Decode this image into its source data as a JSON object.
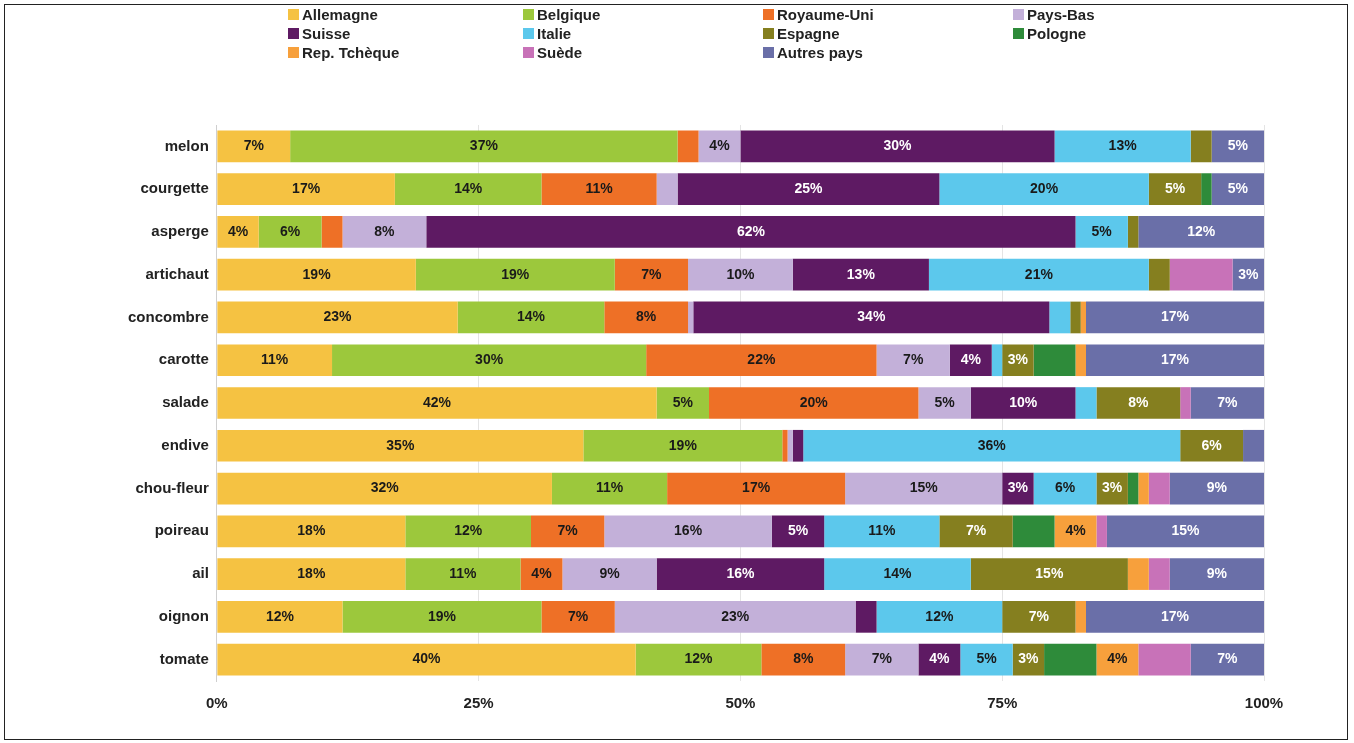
{
  "chart_data": {
    "type": "bar",
    "orientation": "horizontal",
    "stacked": true,
    "legend": "top",
    "grid": "x",
    "categories": [
      "melon",
      "courgette",
      "asperge",
      "artichaut",
      "concombre",
      "carotte",
      "salade",
      "endive",
      "chou-fleur",
      "poireau",
      "ail",
      "oignon",
      "tomate"
    ],
    "xlim": [
      0,
      100
    ],
    "xticks": [
      {
        "value": 0,
        "label": "0%"
      },
      {
        "value": 25,
        "label": "25%"
      },
      {
        "value": 50,
        "label": "50%"
      },
      {
        "value": 75,
        "label": "75%"
      },
      {
        "value": 100,
        "label": "100%"
      }
    ],
    "series": [
      {
        "name": "Allemagne",
        "color": "#f5c242",
        "values": [
          7,
          17,
          4,
          19,
          23,
          11,
          42,
          35,
          32,
          18,
          18,
          12,
          40
        ],
        "value_labels": [
          "7%",
          "17%",
          "4%",
          "19%",
          "23%",
          "11%",
          "42%",
          "35%",
          "32%",
          "18%",
          "18%",
          "12%",
          "40%"
        ]
      },
      {
        "name": "Belgique",
        "color": "#9cc83c",
        "values": [
          37,
          14,
          6,
          19,
          14,
          30,
          5,
          19,
          11,
          12,
          11,
          19,
          12
        ],
        "value_labels": [
          "37%",
          "14%",
          "6%",
          "19%",
          "14%",
          "30%",
          "5%",
          "19%",
          "11%",
          "12%",
          "11%",
          "19%",
          "12%"
        ]
      },
      {
        "name": "Royaume-Uni",
        "color": "#ee7026",
        "values": [
          2,
          11,
          2,
          7,
          8,
          22,
          20,
          0.5,
          17,
          7,
          4,
          7,
          8
        ],
        "value_labels": [
          null,
          "11%",
          null,
          "7%",
          "8%",
          "22%",
          "20%",
          null,
          "17%",
          "7%",
          "4%",
          "7%",
          "8%"
        ]
      },
      {
        "name": "Pays-Bas",
        "color": "#c3b0d9",
        "values": [
          4,
          2,
          8,
          10,
          0.5,
          7,
          5,
          0.5,
          15,
          16,
          9,
          23,
          7
        ],
        "value_labels": [
          "4%",
          null,
          "8%",
          "10%",
          null,
          "7%",
          "5%",
          null,
          "15%",
          "16%",
          "9%",
          "23%",
          "7%"
        ]
      },
      {
        "name": "Suisse",
        "color": "#5e1a63",
        "values": [
          30,
          25,
          62,
          13,
          34,
          4,
          10,
          1,
          3,
          5,
          16,
          2,
          4
        ],
        "value_labels": [
          "30%",
          "25%",
          "62%",
          "13%",
          "34%",
          "4%",
          "10%",
          null,
          "3%",
          "5%",
          "16%",
          null,
          "4%"
        ]
      },
      {
        "name": "Italie",
        "color": "#5cc8ec",
        "values": [
          13,
          20,
          5,
          21,
          2,
          1,
          2,
          36,
          6,
          11,
          14,
          12,
          5
        ],
        "value_labels": [
          "13%",
          "20%",
          "5%",
          "21%",
          null,
          null,
          null,
          "36%",
          "6%",
          "11%",
          "14%",
          "12%",
          "5%"
        ]
      },
      {
        "name": "Espagne",
        "color": "#857f1f",
        "values": [
          2,
          5,
          1,
          2,
          1,
          3,
          8,
          6,
          3,
          7,
          15,
          7,
          3
        ],
        "value_labels": [
          null,
          "5%",
          null,
          null,
          null,
          "3%",
          "8%",
          "6%",
          "3%",
          "7%",
          "15%",
          "7%",
          "3%"
        ]
      },
      {
        "name": "Pologne",
        "color": "#2e8b3a",
        "values": [
          0,
          1,
          0,
          0,
          0,
          4,
          0,
          0,
          1,
          4,
          0,
          0,
          5
        ],
        "value_labels": [
          null,
          null,
          null,
          null,
          null,
          null,
          null,
          null,
          null,
          null,
          null,
          null,
          null
        ]
      },
      {
        "name": "Rep. Tchèque",
        "color": "#f7a03c",
        "values": [
          0,
          0,
          0,
          0,
          0.5,
          1,
          0,
          0,
          1,
          4,
          2,
          1,
          4
        ],
        "value_labels": [
          null,
          null,
          null,
          null,
          null,
          null,
          null,
          null,
          null,
          "4%",
          null,
          null,
          "4%"
        ]
      },
      {
        "name": "Suède",
        "color": "#c872b8",
        "values": [
          0,
          0,
          0,
          6,
          0,
          0,
          1,
          0,
          2,
          1,
          2,
          0,
          5
        ],
        "value_labels": [
          null,
          null,
          null,
          null,
          null,
          null,
          null,
          null,
          null,
          null,
          null,
          null,
          null
        ]
      },
      {
        "name": "Autres pays",
        "color": "#6a6fa8",
        "values": [
          5,
          5,
          12,
          3,
          17,
          17,
          7,
          2,
          9,
          15,
          9,
          17,
          7
        ],
        "value_labels": [
          "5%",
          "5%",
          "12%",
          "3%",
          "17%",
          "17%",
          "7%",
          null,
          "9%",
          "15%",
          "9%",
          "17%",
          "7%"
        ]
      }
    ]
  }
}
